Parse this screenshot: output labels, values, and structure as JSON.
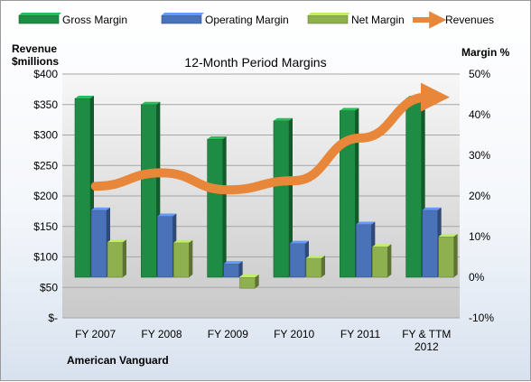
{
  "chart_data": {
    "type": "bar",
    "title": "12-Month Period Margins",
    "company": "American Vanguard",
    "categories": [
      [
        "FY 2007"
      ],
      [
        "FY 2008"
      ],
      [
        "FY 2009"
      ],
      [
        "FY 2010"
      ],
      [
        "FY 2011"
      ],
      [
        "FY & TTM",
        "2012"
      ]
    ],
    "left_axis": {
      "label_lines": [
        "Revenue",
        "$millions"
      ],
      "range": [
        0,
        400
      ],
      "ticks": [
        "$400",
        "$350",
        "$300",
        "$250",
        "$200",
        "$150",
        "$100",
        "$50",
        "$-"
      ]
    },
    "right_axis": {
      "label": "Margin %",
      "range": [
        -10,
        50
      ],
      "ticks": [
        "50%",
        "40%",
        "30%",
        "20%",
        "10%",
        "0%",
        "-10%"
      ]
    },
    "series": [
      {
        "name": "Gross Margin",
        "type": "bar",
        "axis": "right",
        "color": "#1e8c44",
        "values": [
          44,
          42.5,
          34,
          38.5,
          41,
          44
        ]
      },
      {
        "name": "Operating Margin",
        "type": "bar",
        "axis": "right",
        "color": "#4a72b8",
        "values": [
          16.5,
          15,
          3.3,
          8.3,
          13,
          16.5
        ]
      },
      {
        "name": "Net Margin",
        "type": "bar",
        "axis": "right",
        "color": "#8fb04e",
        "values": [
          8.6,
          8.5,
          -2.7,
          4.7,
          7.5,
          10
        ]
      },
      {
        "name": "Revenues",
        "type": "line",
        "axis": "left",
        "color": "#e8863a",
        "values": [
          216,
          238,
          210,
          225,
          295,
          362
        ]
      }
    ],
    "grid": true,
    "legend": "top"
  }
}
